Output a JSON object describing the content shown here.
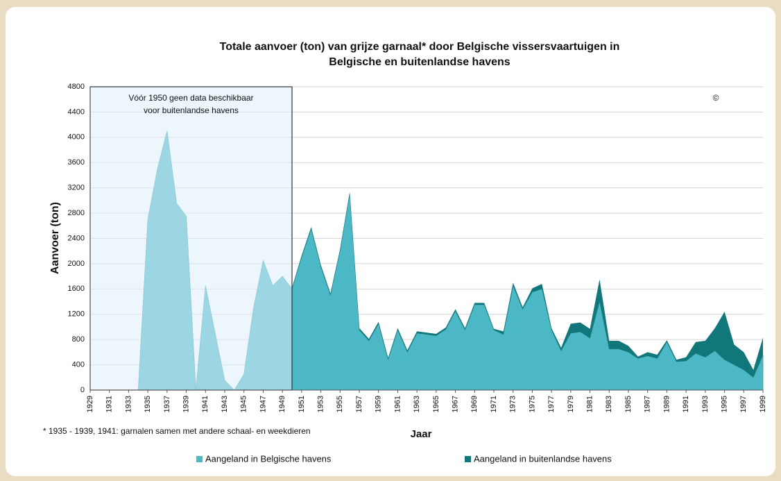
{
  "chart_data": {
    "type": "area",
    "title": [
      "Totale aanvoer (ton) van grijze garnaal* door Belgische vissersvaartuigen in",
      "Belgische en buitenlandse havens"
    ],
    "y_label": "Aanvoer (ton)",
    "x_label": "Jaar",
    "annotation": [
      "Vóór 1950 geen data beschikbaar",
      "voor buitenlandse havens"
    ],
    "annotation_until": 1950,
    "copyright": "©",
    "footnote": "* 1935 - 1939, 1941: garnalen samen met andere schaal- en weekdieren",
    "x": [
      1929,
      1930,
      1931,
      1932,
      1933,
      1934,
      1935,
      1936,
      1937,
      1938,
      1939,
      1940,
      1941,
      1942,
      1943,
      1944,
      1945,
      1946,
      1947,
      1948,
      1949,
      1950,
      1951,
      1952,
      1953,
      1954,
      1955,
      1956,
      1957,
      1958,
      1959,
      1960,
      1961,
      1962,
      1963,
      1964,
      1965,
      1966,
      1967,
      1968,
      1969,
      1970,
      1971,
      1972,
      1973,
      1974,
      1975,
      1976,
      1977,
      1978,
      1979,
      1980,
      1981,
      1982,
      1983,
      1984,
      1985,
      1986,
      1987,
      1988,
      1989,
      1990,
      1991,
      1992,
      1993,
      1994,
      1995,
      1996,
      1997,
      1998,
      1999
    ],
    "series": [
      {
        "name": "Aangeland in Belgische havens",
        "color": "#4db8c5",
        "values": [
          0,
          0,
          0,
          0,
          0,
          0,
          2700,
          3500,
          4100,
          2950,
          2750,
          0,
          1650,
          900,
          150,
          0,
          250,
          1300,
          2050,
          1650,
          1800,
          1600,
          2100,
          2550,
          1950,
          1500,
          2200,
          3100,
          950,
          780,
          1050,
          480,
          950,
          600,
          900,
          880,
          860,
          960,
          1250,
          950,
          1350,
          1350,
          950,
          880,
          1650,
          1280,
          1550,
          1600,
          950,
          620,
          900,
          920,
          820,
          1400,
          650,
          650,
          600,
          500,
          540,
          500,
          760,
          450,
          460,
          580,
          520,
          620,
          480,
          400,
          320,
          200,
          550
        ]
      },
      {
        "name": "Aangeland in buitenlandse havens",
        "color": "#12777a",
        "values": [
          null,
          null,
          null,
          null,
          null,
          null,
          null,
          null,
          null,
          null,
          null,
          null,
          null,
          null,
          null,
          null,
          null,
          null,
          null,
          null,
          null,
          20,
          30,
          30,
          30,
          30,
          30,
          30,
          30,
          30,
          30,
          30,
          30,
          30,
          30,
          30,
          30,
          30,
          30,
          30,
          30,
          30,
          20,
          50,
          50,
          30,
          60,
          80,
          30,
          50,
          150,
          150,
          150,
          350,
          130,
          130,
          100,
          30,
          60,
          60,
          30,
          30,
          60,
          180,
          260,
          360,
          760,
          320,
          280,
          120,
          280
        ]
      }
    ],
    "xlim": [
      1929,
      1999
    ],
    "xticks": [
      1929,
      1931,
      1933,
      1935,
      1937,
      1939,
      1941,
      1943,
      1945,
      1947,
      1949,
      1951,
      1953,
      1955,
      1957,
      1959,
      1961,
      1963,
      1965,
      1967,
      1969,
      1971,
      1973,
      1975,
      1977,
      1979,
      1981,
      1983,
      1985,
      1987,
      1989,
      1991,
      1993,
      1995,
      1997,
      1999
    ],
    "ylim": [
      0,
      4800
    ],
    "yticks": [
      0,
      400,
      800,
      1200,
      1600,
      2000,
      2400,
      2800,
      3200,
      3600,
      4000,
      4400,
      4800
    ],
    "grid": true
  }
}
